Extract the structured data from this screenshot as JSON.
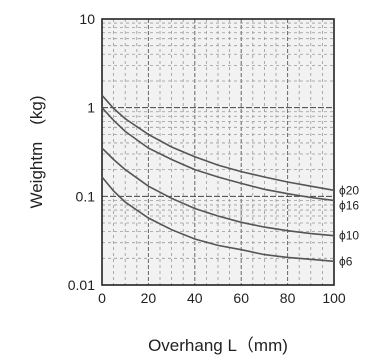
{
  "chart_data": {
    "type": "line",
    "xlabel": "Overhang L（mm)",
    "ylabel": "Weightm　(kg)",
    "x_ticks": [
      "0",
      "20",
      "40",
      "60",
      "80",
      "100"
    ],
    "y_ticks": [
      "0.01",
      "0.1",
      "1",
      "10"
    ],
    "xlim": [
      0,
      100
    ],
    "ylim": [
      0.01,
      10
    ],
    "yscale": "log",
    "grid": true,
    "series": [
      {
        "name": "ϕ20",
        "x": [
          0,
          5,
          10,
          20,
          30,
          40,
          50,
          60,
          70,
          80,
          90,
          100
        ],
        "y": [
          1.38,
          0.98,
          0.75,
          0.5,
          0.36,
          0.28,
          0.225,
          0.19,
          0.165,
          0.145,
          0.13,
          0.117
        ]
      },
      {
        "name": "ϕ16",
        "x": [
          0,
          5,
          10,
          20,
          30,
          40,
          50,
          60,
          70,
          80,
          90,
          100
        ],
        "y": [
          1.0,
          0.72,
          0.54,
          0.35,
          0.26,
          0.2,
          0.165,
          0.14,
          0.12,
          0.107,
          0.097,
          0.09
        ]
      },
      {
        "name": "ϕ10",
        "x": [
          0,
          5,
          10,
          20,
          30,
          40,
          50,
          60,
          70,
          80,
          90,
          100
        ],
        "y": [
          0.35,
          0.26,
          0.2,
          0.13,
          0.095,
          0.073,
          0.06,
          0.051,
          0.045,
          0.041,
          0.038,
          0.036
        ]
      },
      {
        "name": "ϕ6",
        "x": [
          0,
          5,
          10,
          20,
          30,
          40,
          50,
          60,
          70,
          80,
          90,
          100
        ],
        "y": [
          0.165,
          0.115,
          0.086,
          0.057,
          0.042,
          0.033,
          0.028,
          0.025,
          0.022,
          0.0205,
          0.0195,
          0.0185
        ]
      }
    ]
  }
}
